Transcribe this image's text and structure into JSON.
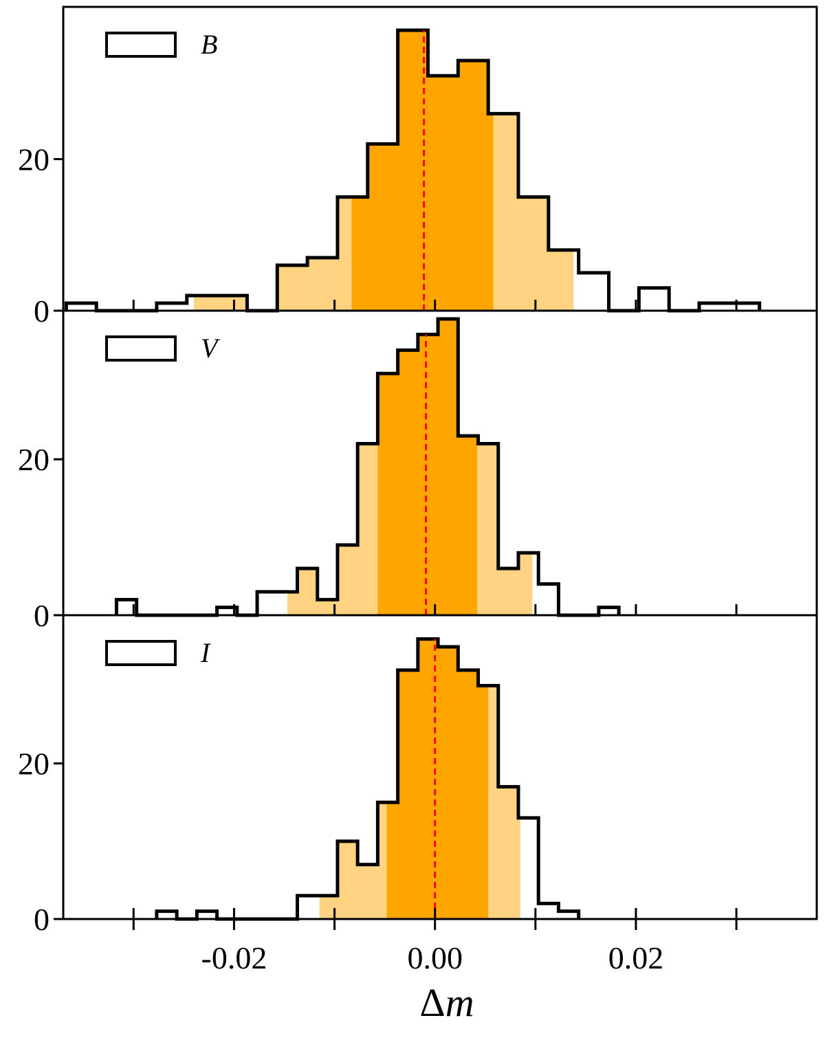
{
  "chart_data": {
    "type": "histogram-stack",
    "xlabel_prefix": "Δ",
    "xlabel_var": "m",
    "xlim": [
      -0.037,
      0.038
    ],
    "x_ticks": [
      -0.02,
      0.0,
      0.02
    ],
    "x_tick_labels": [
      "-0.02",
      "0.00",
      "0.02"
    ],
    "x_minor_ticks": [
      -0.03,
      -0.01,
      0.01,
      0.03
    ],
    "y_ticks": [
      0,
      20
    ],
    "y_tick_labels": [
      "0",
      "20"
    ],
    "colors": {
      "outline": "#000000",
      "inner_fill": "#FFA500",
      "outer_fill": "#FFD382",
      "median_line": "#FF0000"
    },
    "panels": [
      {
        "legend": "B",
        "ylim": [
          0,
          39
        ],
        "bins": [
          [
            -0.0367,
            1
          ],
          [
            -0.0337,
            0
          ],
          [
            -0.0307,
            0
          ],
          [
            -0.0277,
            1
          ],
          [
            -0.0247,
            2
          ],
          [
            -0.0217,
            2
          ],
          [
            -0.0187,
            0
          ],
          [
            -0.0157,
            6
          ],
          [
            -0.0127,
            7
          ],
          [
            -0.0097,
            15
          ],
          [
            -0.0067,
            22
          ],
          [
            -0.0037,
            37
          ],
          [
            -0.0007,
            31
          ],
          [
            0.0023,
            33
          ],
          [
            0.0053,
            26
          ],
          [
            0.0083,
            15
          ],
          [
            0.0113,
            8
          ],
          [
            0.0143,
            5
          ],
          [
            0.0173,
            0
          ],
          [
            0.0203,
            3
          ],
          [
            0.0233,
            0
          ],
          [
            0.0263,
            1
          ],
          [
            0.0293,
            1
          ]
        ],
        "bin_width": 0.003,
        "outer_band": [
          -0.024,
          0.0138
        ],
        "inner_band": [
          -0.0083,
          0.0058
        ],
        "median": -0.0011
      },
      {
        "legend": "V",
        "ylim": [
          0,
          38
        ],
        "bins": [
          [
            -0.0317,
            2
          ],
          [
            -0.0297,
            0
          ],
          [
            -0.0277,
            0
          ],
          [
            -0.0257,
            0
          ],
          [
            -0.0237,
            0
          ],
          [
            -0.0217,
            1
          ],
          [
            -0.0197,
            0
          ],
          [
            -0.0177,
            3
          ],
          [
            -0.0157,
            3
          ],
          [
            -0.0137,
            6
          ],
          [
            -0.0117,
            2
          ],
          [
            -0.0097,
            9
          ],
          [
            -0.0077,
            22
          ],
          [
            -0.0057,
            31
          ],
          [
            -0.0037,
            34
          ],
          [
            -0.0017,
            36
          ],
          [
            0.0003,
            38
          ],
          [
            0.0023,
            23
          ],
          [
            0.0043,
            22
          ],
          [
            0.0063,
            6
          ],
          [
            0.0083,
            8
          ],
          [
            0.0103,
            4
          ],
          [
            0.0123,
            0
          ],
          [
            0.0143,
            0
          ],
          [
            0.0163,
            1
          ]
        ],
        "bin_width": 0.002,
        "outer_band": [
          -0.0147,
          0.0097
        ],
        "inner_band": [
          -0.0057,
          0.0042
        ],
        "median": -0.0009
      },
      {
        "legend": "I",
        "ylim": [
          0,
          38
        ],
        "bins": [
          [
            -0.0277,
            1
          ],
          [
            -0.0257,
            0
          ],
          [
            -0.0237,
            1
          ],
          [
            -0.0217,
            0
          ],
          [
            -0.0197,
            0
          ],
          [
            -0.0177,
            0
          ],
          [
            -0.0157,
            0
          ],
          [
            -0.0137,
            3
          ],
          [
            -0.0117,
            3
          ],
          [
            -0.0097,
            10
          ],
          [
            -0.0077,
            7
          ],
          [
            -0.0057,
            15
          ],
          [
            -0.0037,
            32
          ],
          [
            -0.0017,
            36
          ],
          [
            0.0003,
            35
          ],
          [
            0.0023,
            32
          ],
          [
            0.0043,
            30
          ],
          [
            0.0063,
            17
          ],
          [
            0.0083,
            13
          ],
          [
            0.0103,
            2
          ],
          [
            0.0123,
            1
          ]
        ],
        "bin_width": 0.002,
        "outer_band": [
          -0.0115,
          0.0085
        ],
        "inner_band": [
          -0.0048,
          0.0053
        ],
        "median": 0.0
      }
    ]
  }
}
